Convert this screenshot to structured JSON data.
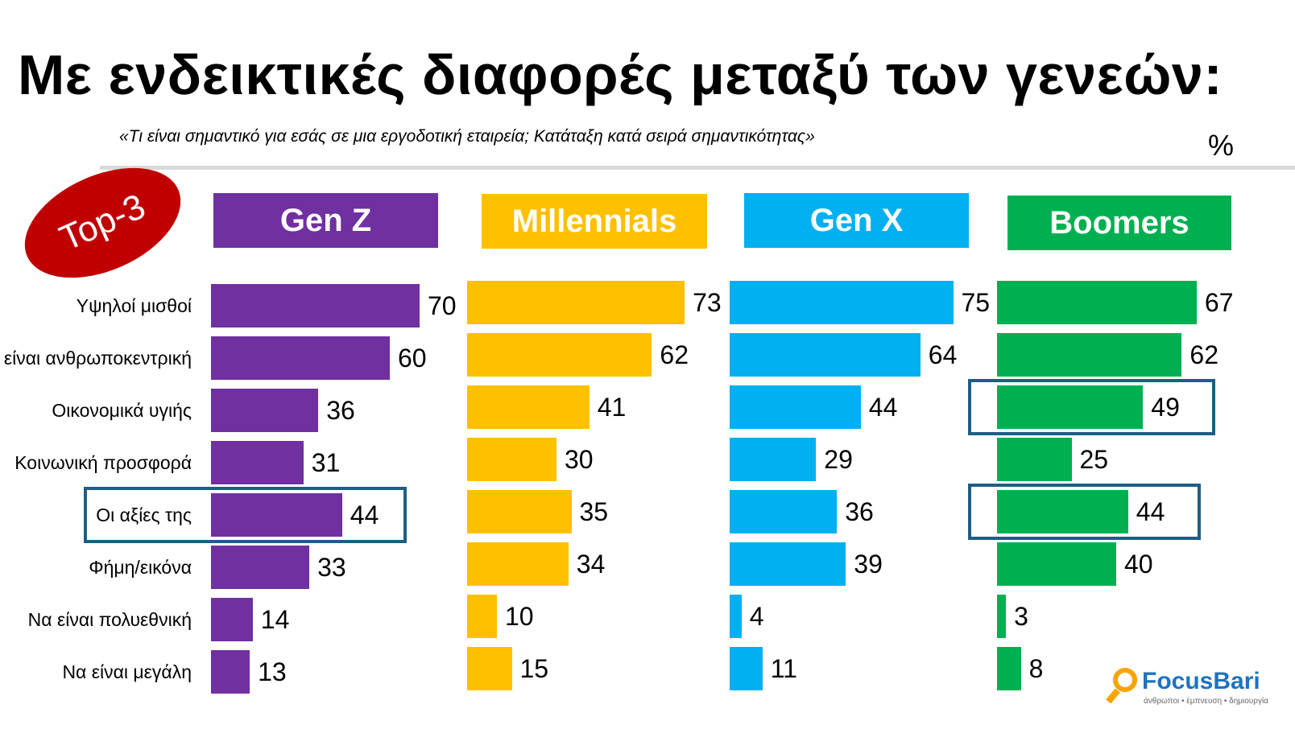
{
  "header": {
    "title": "Με ενδεικτικές διαφορές μεταξύ των γενεών:",
    "subtitle": "«Τι είναι σημαντικό για εσάς σε μια εργοδοτική εταιρεία; Κατάταξη κατά σειρά σημαντικότητας»",
    "unit": "%"
  },
  "badge": {
    "label": "Top-3",
    "color": "#c00000"
  },
  "logo": {
    "name": "FocusBari",
    "tagline": "άνθρωποι • έμπνευση • δημιουργία"
  },
  "highlight_color": "#1d5e85",
  "chart_data": {
    "type": "bar",
    "orientation": "horizontal",
    "categories": [
      "Υψηλοί μισθοί",
      "Να είναι ανθρωποκεντρική",
      "Οικονομικά υγιής",
      "Κοινωνική προσφορά",
      "Οι αξίες της",
      "Φήμη/εικόνα",
      "Να είναι πολυεθνική",
      "Να είναι μεγάλη"
    ],
    "series": [
      {
        "name": "Gen Z",
        "color": "#7030a0",
        "values": [
          70,
          60,
          36,
          31,
          44,
          33,
          14,
          13
        ],
        "highlight": [
          4
        ]
      },
      {
        "name": "Millennials",
        "color": "#ffc000",
        "values": [
          73,
          62,
          41,
          30,
          35,
          34,
          10,
          15
        ],
        "highlight": []
      },
      {
        "name": "Gen X",
        "color": "#00b0f0",
        "values": [
          75,
          64,
          44,
          29,
          36,
          39,
          4,
          11
        ],
        "highlight": []
      },
      {
        "name": "Boomers",
        "color": "#00b050",
        "values": [
          67,
          62,
          49,
          25,
          44,
          40,
          3,
          8
        ],
        "highlight": [
          2,
          4
        ]
      }
    ],
    "xlim": [
      0,
      100
    ],
    "grid": false,
    "legend": "top"
  }
}
